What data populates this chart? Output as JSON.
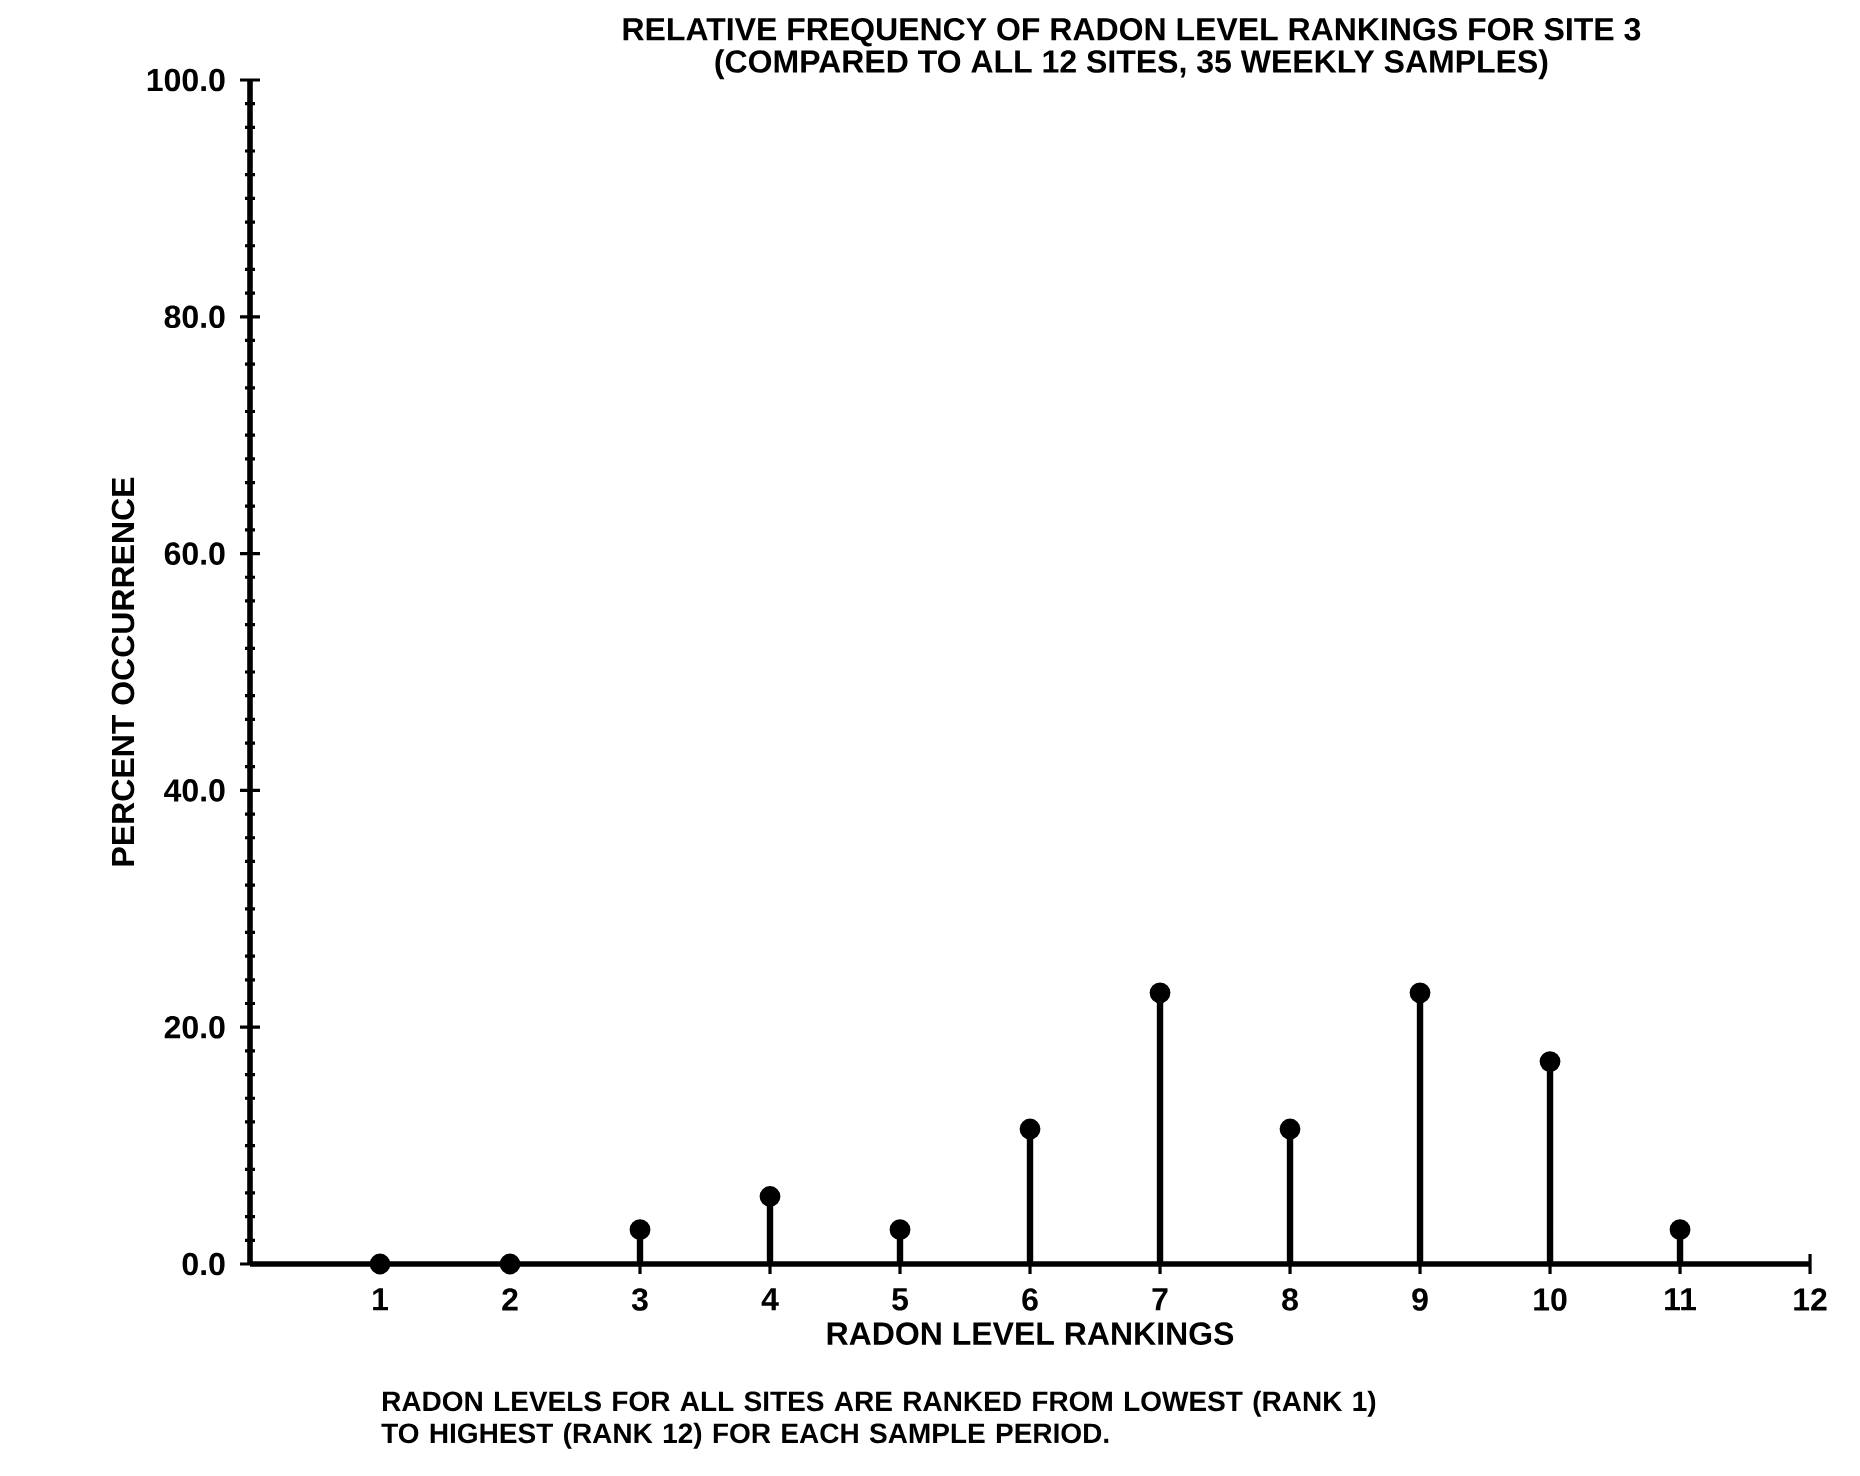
{
  "chart_data": {
    "type": "lollipop",
    "title": "RELATIVE FREQUENCY OF RADON LEVEL RANKINGS FOR SITE 3",
    "subtitle": "(COMPARED TO ALL 12 SITES, 35 WEEKLY SAMPLES)",
    "xlabel": "RADON LEVEL RANKINGS",
    "ylabel": "PERCENT OCCURRENCE",
    "annotations": [
      "RADON LEVELS FOR ALL SITES ARE RANKED FROM LOWEST (RANK 1) TO HIGHEST (RANK 12) FOR EACH SAMPLE PERIOD."
    ],
    "x": [
      1,
      2,
      3,
      4,
      5,
      6,
      7,
      8,
      9,
      10,
      11
    ],
    "values": [
      0,
      0,
      2.9,
      5.7,
      2.9,
      11.4,
      22.9,
      11.4,
      22.9,
      17.1,
      2.9
    ],
    "color": "#000000",
    "marker": "circle",
    "xlim": [
      0,
      12
    ],
    "xticks": [
      1,
      2,
      3,
      4,
      5,
      6,
      7,
      8,
      9,
      10,
      11,
      12
    ],
    "ylim": [
      0,
      100
    ],
    "yticks": [
      {
        "value": 0,
        "label": "0.0"
      },
      {
        "value": 20,
        "label": "20.0"
      },
      {
        "value": 40,
        "label": "40.0"
      },
      {
        "value": 60,
        "label": "60.0"
      },
      {
        "value": 80,
        "label": "80.0"
      },
      {
        "value": 100,
        "label": "100.0"
      }
    ]
  }
}
